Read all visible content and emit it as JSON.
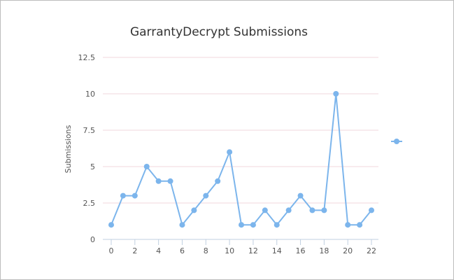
{
  "chart_data": {
    "type": "line",
    "title": "GarrantyDecrypt Submissions",
    "xlabel": "",
    "ylabel": "Submissions",
    "xlim": [
      0,
      22
    ],
    "ylim": [
      0,
      12.5
    ],
    "x_ticks": [
      "0",
      "2",
      "4",
      "6",
      "8",
      "10",
      "12",
      "14",
      "16",
      "18",
      "20",
      "22"
    ],
    "y_ticks": [
      "0",
      "2.5",
      "5",
      "7.5",
      "10",
      "12.5"
    ],
    "grid": true,
    "legend_position": "right",
    "series": [
      {
        "color": "#7cb5ec",
        "x": [
          0,
          1,
          2,
          3,
          4,
          5,
          6,
          7,
          8,
          9,
          10,
          11,
          12,
          13,
          14,
          15,
          16,
          17,
          18,
          19,
          20,
          21,
          22
        ],
        "y": [
          1,
          3,
          3,
          5,
          4,
          4,
          1,
          2,
          3,
          4,
          6,
          1,
          1,
          2,
          1,
          2,
          3,
          2,
          2,
          10,
          1,
          1,
          2
        ]
      }
    ]
  }
}
